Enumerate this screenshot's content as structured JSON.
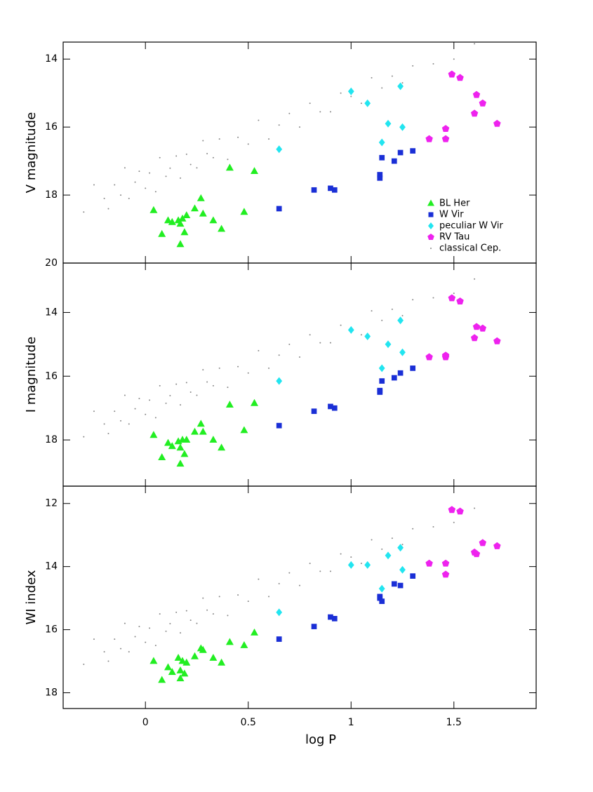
{
  "chart_data": [
    {
      "type": "scatter",
      "ylabel": "V magnitude",
      "xlim": [
        -0.4,
        1.9
      ],
      "ylim": [
        20,
        13.5
      ],
      "xticks": [
        0,
        0.5,
        1,
        1.5
      ],
      "yticks": [
        14,
        16,
        18,
        20
      ],
      "legend": "lower right",
      "series": [
        {
          "name": "BL Her",
          "color": "#22ee22",
          "marker": "triangle",
          "x": [
            0.04,
            0.08,
            0.11,
            0.13,
            0.16,
            0.17,
            0.17,
            0.18,
            0.19,
            0.2,
            0.24,
            0.27,
            0.28,
            0.33,
            0.37,
            0.41,
            0.48,
            0.53
          ],
          "values": [
            18.45,
            19.15,
            18.75,
            18.8,
            18.75,
            18.85,
            19.45,
            18.7,
            19.1,
            18.6,
            18.4,
            18.1,
            18.55,
            18.75,
            19.0,
            17.2,
            18.5,
            17.3
          ]
        },
        {
          "name": "W Vir",
          "color": "#1a2fd6",
          "marker": "square",
          "x": [
            0.65,
            0.82,
            0.9,
            0.92,
            1.14,
            1.14,
            1.15,
            1.21,
            1.24,
            1.3
          ],
          "values": [
            18.4,
            17.85,
            17.8,
            17.85,
            17.4,
            17.5,
            16.9,
            17.0,
            16.75,
            16.7
          ]
        },
        {
          "name": "peculiar W Vir",
          "color": "#22e5f0",
          "marker": "diamond",
          "x": [
            0.65,
            1.0,
            1.08,
            1.15,
            1.18,
            1.24,
            1.25
          ],
          "values": [
            16.65,
            14.95,
            15.3,
            16.45,
            15.9,
            14.8,
            16.0
          ]
        },
        {
          "name": "RV Tau",
          "color": "#ee22ee",
          "marker": "pentagon",
          "x": [
            1.38,
            1.46,
            1.46,
            1.49,
            1.53,
            1.6,
            1.61,
            1.64,
            1.71
          ],
          "values": [
            16.35,
            16.05,
            16.35,
            14.45,
            14.55,
            15.6,
            15.05,
            15.3,
            15.9
          ]
        },
        {
          "name": "classical Cep.",
          "color": "#888888",
          "marker": "dot",
          "x": [
            -0.3,
            -0.25,
            -0.2,
            -0.18,
            -0.15,
            -0.12,
            -0.1,
            -0.08,
            -0.05,
            -0.03,
            0,
            0.02,
            0.05,
            0.07,
            0.1,
            0.12,
            0.15,
            0.17,
            0.2,
            0.22,
            0.25,
            0.28,
            0.3,
            0.33,
            0.36,
            0.4,
            0.45,
            0.5,
            0.55,
            0.6,
            0.65,
            0.7,
            0.75,
            0.8,
            0.85,
            0.9,
            0.95,
            1.0,
            1.05,
            1.1,
            1.15,
            1.2,
            1.25,
            1.3,
            1.4,
            1.5,
            1.6
          ],
          "values": [
            18.5,
            17.7,
            18.1,
            18.4,
            17.7,
            18.0,
            17.2,
            18.1,
            17.62,
            17.3,
            17.8,
            17.35,
            17.9,
            16.9,
            17.45,
            17.21,
            16.85,
            17.5,
            16.8,
            17.1,
            17.2,
            16.4,
            16.78,
            16.9,
            16.35,
            16.95,
            16.3,
            16.5,
            15.8,
            16.35,
            15.94,
            15.6,
            16.0,
            15.3,
            15.55,
            15.55,
            15.0,
            15.1,
            15.3,
            14.55,
            14.85,
            14.5,
            14.7,
            14.2,
            14.14,
            14.0,
            13.55
          ]
        }
      ]
    },
    {
      "type": "scatter",
      "ylabel": "I magnitude",
      "xlim": [
        -0.4,
        1.9
      ],
      "ylim": [
        19.45,
        12.45
      ],
      "xticks": [
        0,
        0.5,
        1,
        1.5
      ],
      "yticks": [
        14,
        16,
        18
      ],
      "series": [
        {
          "name": "BL Her",
          "color": "#22ee22",
          "marker": "triangle",
          "x": [
            0.04,
            0.08,
            0.11,
            0.13,
            0.16,
            0.17,
            0.17,
            0.18,
            0.19,
            0.2,
            0.24,
            0.27,
            0.28,
            0.33,
            0.37,
            0.41,
            0.48,
            0.53
          ],
          "values": [
            17.85,
            18.55,
            18.1,
            18.2,
            18.05,
            18.25,
            18.75,
            18.0,
            18.45,
            18.0,
            17.75,
            17.5,
            17.75,
            18.0,
            18.25,
            16.9,
            17.7,
            16.85
          ]
        },
        {
          "name": "W Vir",
          "color": "#1a2fd6",
          "marker": "square",
          "x": [
            0.65,
            0.82,
            0.9,
            0.92,
            1.14,
            1.14,
            1.15,
            1.21,
            1.24,
            1.3
          ],
          "values": [
            17.55,
            17.1,
            16.95,
            17.0,
            16.45,
            16.5,
            16.15,
            16.05,
            15.9,
            15.75
          ]
        },
        {
          "name": "peculiar W Vir",
          "color": "#22e5f0",
          "marker": "diamond",
          "x": [
            0.65,
            1.0,
            1.08,
            1.15,
            1.18,
            1.24,
            1.25
          ],
          "values": [
            16.15,
            14.55,
            14.75,
            15.75,
            15.0,
            14.25,
            15.25
          ]
        },
        {
          "name": "RV Tau",
          "color": "#ee22ee",
          "marker": "pentagon",
          "x": [
            1.38,
            1.46,
            1.46,
            1.49,
            1.53,
            1.6,
            1.61,
            1.64,
            1.71
          ],
          "values": [
            15.4,
            15.35,
            15.4,
            13.55,
            13.65,
            14.8,
            14.45,
            14.5,
            14.9
          ]
        },
        {
          "name": "classical Cep.",
          "color": "#888888",
          "marker": "dot",
          "x": [
            -0.3,
            -0.25,
            -0.2,
            -0.18,
            -0.15,
            -0.12,
            -0.1,
            -0.08,
            -0.05,
            -0.03,
            0,
            0.02,
            0.05,
            0.07,
            0.1,
            0.12,
            0.15,
            0.17,
            0.2,
            0.22,
            0.25,
            0.28,
            0.3,
            0.33,
            0.36,
            0.4,
            0.45,
            0.5,
            0.55,
            0.6,
            0.65,
            0.7,
            0.75,
            0.8,
            0.85,
            0.9,
            0.95,
            1.0,
            1.05,
            1.1,
            1.15,
            1.2,
            1.25,
            1.3,
            1.4,
            1.5,
            1.6
          ],
          "values": [
            17.9,
            17.1,
            17.5,
            17.8,
            17.1,
            17.4,
            16.6,
            17.5,
            17.02,
            16.7,
            17.2,
            16.75,
            17.3,
            16.3,
            16.85,
            16.61,
            16.25,
            16.9,
            16.2,
            16.5,
            16.6,
            15.8,
            16.18,
            16.3,
            15.75,
            16.35,
            15.7,
            15.9,
            15.2,
            15.75,
            15.34,
            15.0,
            15.4,
            14.7,
            14.95,
            14.95,
            14.4,
            14.5,
            14.7,
            13.95,
            14.25,
            13.9,
            14.1,
            13.6,
            13.54,
            13.4,
            12.95
          ]
        }
      ]
    },
    {
      "type": "scatter",
      "ylabel": "WI index",
      "xlabel": "log P",
      "xlim": [
        -0.4,
        1.9
      ],
      "ylim": [
        18.5,
        11.45
      ],
      "xticks": [
        0,
        0.5,
        1,
        1.5
      ],
      "yticks": [
        12,
        14,
        16,
        18
      ],
      "series": [
        {
          "name": "BL Her",
          "color": "#22ee22",
          "marker": "triangle",
          "x": [
            0.04,
            0.08,
            0.11,
            0.13,
            0.16,
            0.17,
            0.17,
            0.18,
            0.19,
            0.2,
            0.24,
            0.27,
            0.28,
            0.33,
            0.37,
            0.41,
            0.48,
            0.53
          ],
          "values": [
            17.0,
            17.6,
            17.2,
            17.35,
            16.9,
            17.3,
            17.55,
            17.0,
            17.4,
            17.05,
            16.85,
            16.6,
            16.65,
            16.9,
            17.05,
            16.4,
            16.5,
            16.1
          ]
        },
        {
          "name": "W Vir",
          "color": "#1a2fd6",
          "marker": "square",
          "x": [
            0.65,
            0.82,
            0.9,
            0.92,
            1.14,
            1.14,
            1.15,
            1.21,
            1.24,
            1.3
          ],
          "values": [
            16.3,
            15.9,
            15.6,
            15.65,
            14.95,
            15.0,
            15.1,
            14.55,
            14.6,
            14.3
          ]
        },
        {
          "name": "peculiar W Vir",
          "color": "#22e5f0",
          "marker": "diamond",
          "x": [
            0.65,
            1.0,
            1.08,
            1.15,
            1.18,
            1.24,
            1.25
          ],
          "values": [
            15.45,
            13.95,
            13.95,
            14.7,
            13.65,
            13.4,
            14.1
          ]
        },
        {
          "name": "RV Tau",
          "color": "#ee22ee",
          "marker": "pentagon",
          "x": [
            1.38,
            1.46,
            1.46,
            1.49,
            1.53,
            1.6,
            1.61,
            1.64,
            1.71
          ],
          "values": [
            13.9,
            13.9,
            14.25,
            12.2,
            12.25,
            13.55,
            13.6,
            13.25,
            13.35
          ]
        },
        {
          "name": "classical Cep.",
          "color": "#888888",
          "marker": "dot",
          "x": [
            -0.3,
            -0.25,
            -0.2,
            -0.18,
            -0.15,
            -0.12,
            -0.1,
            -0.08,
            -0.05,
            -0.03,
            0,
            0.02,
            0.05,
            0.07,
            0.1,
            0.12,
            0.15,
            0.17,
            0.2,
            0.22,
            0.25,
            0.28,
            0.3,
            0.33,
            0.36,
            0.4,
            0.45,
            0.5,
            0.55,
            0.6,
            0.65,
            0.7,
            0.75,
            0.8,
            0.85,
            0.9,
            0.95,
            1.0,
            1.05,
            1.1,
            1.15,
            1.2,
            1.25,
            1.3,
            1.4,
            1.5,
            1.6
          ],
          "values": [
            17.1,
            16.3,
            16.7,
            17.0,
            16.3,
            16.6,
            15.8,
            16.7,
            16.22,
            15.9,
            16.4,
            15.95,
            16.5,
            15.5,
            16.05,
            15.81,
            15.45,
            16.1,
            15.4,
            15.7,
            15.8,
            15.0,
            15.38,
            15.5,
            14.95,
            15.55,
            14.9,
            15.1,
            14.4,
            14.95,
            14.54,
            14.2,
            14.6,
            13.9,
            14.15,
            14.15,
            13.6,
            13.7,
            13.9,
            13.15,
            13.45,
            13.1,
            13.3,
            12.8,
            12.74,
            12.6,
            12.15
          ]
        }
      ]
    }
  ]
}
